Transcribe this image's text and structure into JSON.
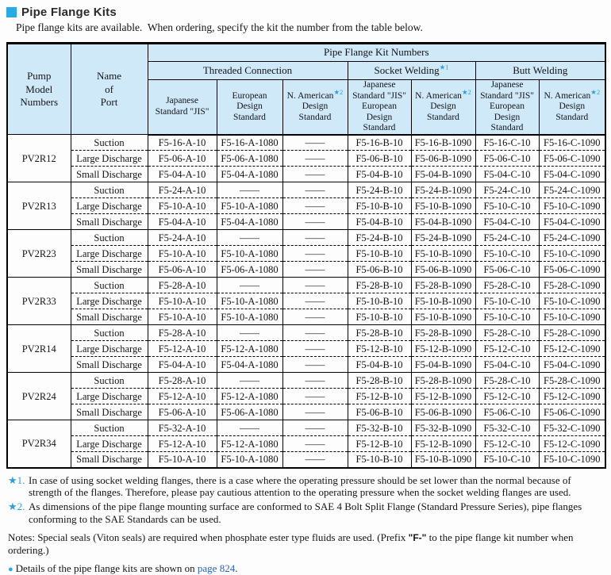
{
  "colors": {
    "accent": "#29abe2",
    "header_bg": "#cfe9f8",
    "star": "#2b9fda",
    "link": "#2a5fc2"
  },
  "page": {
    "title": "Pipe Flange Kits",
    "intro": "Pipe flange kits are available.  When ordering, specify the kit the number from the table below."
  },
  "table": {
    "header": {
      "pump_model": "Pump\nModel\nNumbers",
      "port": "Name\nof\nPort",
      "kit_numbers": "Pipe Flange Kit Numbers",
      "threaded": "Threaded Connection",
      "socket": "Socket Welding",
      "socket_star": "★1",
      "butt": "Butt Welding",
      "sub": {
        "jis": "Japanese\nStandard \"JIS\"",
        "euro": "European\nDesign\nStandard",
        "na_line1": "N. American",
        "na_star": "★2",
        "na_rest": "Design\nStandard",
        "jis_euro": "Japanese\nStandard \"JIS\"\nEuropean\nDesign\nStandard"
      }
    },
    "rows": [
      {
        "model": "PV2R12",
        "ports": [
          {
            "port": "Suction",
            "cells": [
              "F5-16-A-10",
              "F5-16-A-1080",
              "——",
              "F5-16-B-10",
              "F5-16-B-1090",
              "F5-16-C-10",
              "F5-16-C-1090"
            ]
          },
          {
            "port": "Large Discharge",
            "cells": [
              "F5-06-A-10",
              "F5-06-A-1080",
              "——",
              "F5-06-B-10",
              "F5-06-B-1090",
              "F5-06-C-10",
              "F5-06-C-1090"
            ]
          },
          {
            "port": "Small Discharge",
            "cells": [
              "F5-04-A-10",
              "F5-04-A-1080",
              "——",
              "F5-04-B-10",
              "F5-04-B-1090",
              "F5-04-C-10",
              "F5-04-C-1090"
            ]
          }
        ]
      },
      {
        "model": "PV2R13",
        "ports": [
          {
            "port": "Suction",
            "cells": [
              "F5-24-A-10",
              "——",
              "——",
              "F5-24-B-10",
              "F5-24-B-1090",
              "F5-24-C-10",
              "F5-24-C-1090"
            ]
          },
          {
            "port": "Large Discharge",
            "cells": [
              "F5-10-A-10",
              "F5-10-A-1080",
              "——",
              "F5-10-B-10",
              "F5-10-B-1090",
              "F5-10-C-10",
              "F5-10-C-1090"
            ]
          },
          {
            "port": "Small Discharge",
            "cells": [
              "F5-04-A-10",
              "F5-04-A-1080",
              "——",
              "F5-04-B-10",
              "F5-04-B-1090",
              "F5-04-C-10",
              "F5-04-C-1090"
            ]
          }
        ]
      },
      {
        "model": "PV2R23",
        "ports": [
          {
            "port": "Suction",
            "cells": [
              "F5-24-A-10",
              "——",
              "——",
              "F5-24-B-10",
              "F5-24-B-1090",
              "F5-24-C-10",
              "F5-24-C-1090"
            ]
          },
          {
            "port": "Large Discharge",
            "cells": [
              "F5-10-A-10",
              "F5-10-A-1080",
              "——",
              "F5-10-B-10",
              "F5-10-B-1090",
              "F5-10-C-10",
              "F5-10-C-1090"
            ]
          },
          {
            "port": "Small Discharge",
            "cells": [
              "F5-06-A-10",
              "F5-06-A-1080",
              "——",
              "F5-06-B-10",
              "F5-06-B-1090",
              "F5-06-C-10",
              "F5-06-C-1090"
            ]
          }
        ]
      },
      {
        "model": "PV2R33",
        "ports": [
          {
            "port": "Suction",
            "cells": [
              "F5-28-A-10",
              "——",
              "——",
              "F5-28-B-10",
              "F5-28-B-1090",
              "F5-28-C-10",
              "F5-28-C-1090"
            ]
          },
          {
            "port": "Large Discharge",
            "cells": [
              "F5-10-A-10",
              "F5-10-A-1080",
              "——",
              "F5-10-B-10",
              "F5-10-B-1090",
              "F5-10-C-10",
              "F5-10-C-1090"
            ]
          },
          {
            "port": "Small Discharge",
            "cells": [
              "F5-10-A-10",
              "F5-10-A-1080",
              "——",
              "F5-10-B-10",
              "F5-10-B-1090",
              "F5-10-C-10",
              "F5-10-C-1090"
            ]
          }
        ]
      },
      {
        "model": "PV2R14",
        "ports": [
          {
            "port": "Suction",
            "cells": [
              "F5-28-A-10",
              "——",
              "——",
              "F5-28-B-10",
              "F5-28-B-1090",
              "F5-28-C-10",
              "F5-28-C-1090"
            ]
          },
          {
            "port": "Large Discharge",
            "cells": [
              "F5-12-A-10",
              "F5-12-A-1080",
              "——",
              "F5-12-B-10",
              "F5-12-B-1090",
              "F5-12-C-10",
              "F5-12-C-1090"
            ]
          },
          {
            "port": "Small Discharge",
            "cells": [
              "F5-04-A-10",
              "F5-04-A-1080",
              "——",
              "F5-04-B-10",
              "F5-04-B-1090",
              "F5-04-C-10",
              "F5-04-C-1090"
            ]
          }
        ]
      },
      {
        "model": "PV2R24",
        "ports": [
          {
            "port": "Suction",
            "cells": [
              "F5-28-A-10",
              "——",
              "——",
              "F5-28-B-10",
              "F5-28-B-1090",
              "F5-28-C-10",
              "F5-28-C-1090"
            ]
          },
          {
            "port": "Large Discharge",
            "cells": [
              "F5-12-A-10",
              "F5-12-A-1080",
              "——",
              "F5-12-B-10",
              "F5-12-B-1090",
              "F5-12-C-10",
              "F5-12-C-1090"
            ]
          },
          {
            "port": "Small Discharge",
            "cells": [
              "F5-06-A-10",
              "F5-06-A-1080",
              "——",
              "F5-06-B-10",
              "F5-06-B-1090",
              "F5-06-C-10",
              "F5-06-C-1090"
            ]
          }
        ]
      },
      {
        "model": "PV2R34",
        "ports": [
          {
            "port": "Suction",
            "cells": [
              "F5-32-A-10",
              "——",
              "——",
              "F5-32-B-10",
              "F5-32-B-1090",
              "F5-32-C-10",
              "F5-32-C-1090"
            ]
          },
          {
            "port": "Large Discharge",
            "cells": [
              "F5-12-A-10",
              "F5-12-A-1080",
              "——",
              "F5-12-B-10",
              "F5-12-B-1090",
              "F5-12-C-10",
              "F5-12-C-1090"
            ]
          },
          {
            "port": "Small Discharge",
            "cells": [
              "F5-10-A-10",
              "F5-10-A-1080",
              "——",
              "F5-10-B-10",
              "F5-10-B-1090",
              "F5-10-C-10",
              "F5-10-C-1090"
            ]
          }
        ]
      }
    ]
  },
  "footnotes": [
    {
      "marker": "★1.",
      "text": "In case of using socket welding flanges, there is a case where the operating pressure should be set lower than the normal because of strength of the flanges. Therefore, please pay cautious attention to the operating pressure when the socket welding flanges are used."
    },
    {
      "marker": "★2.",
      "text": "As dimensions of the pipe flange mounting surface are conformed to SAE 4 Bolt Split Flange (Standard Pressure Series), pipe flanges conforming to the SAE Standards can be used."
    }
  ],
  "notes": {
    "prefix": "Notes: Special seals (Viton seals) are required when phosphate ester type fluids are used. (Prefix ",
    "bold": "\"F-\"",
    "suffix": " to the pipe flange kit number when ordering.)"
  },
  "details": {
    "bullet": "●",
    "text": "Details of the pipe flange kits are shown on ",
    "link": "page 824",
    "period": "."
  }
}
